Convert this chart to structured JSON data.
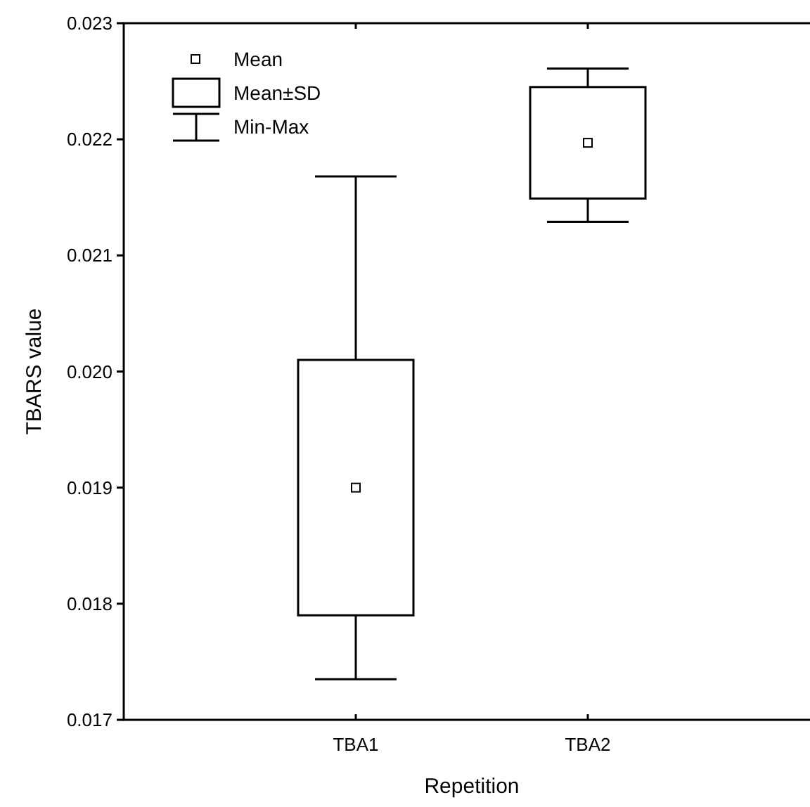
{
  "chart_data": {
    "type": "box",
    "xlabel": "Repetition",
    "ylabel": "TBARS value",
    "categories": [
      "TBA1",
      "TBA2"
    ],
    "boxes": [
      {
        "low": 0.01735,
        "q1": 0.0179,
        "q3": 0.0201,
        "high": 0.02168,
        "mean": 0.019
      },
      {
        "low": 0.02129,
        "q1": 0.02149,
        "q3": 0.02245,
        "high": 0.02261,
        "mean": 0.02197
      }
    ],
    "ylim": [
      0.017,
      0.023
    ],
    "yticks": [
      0.017,
      0.018,
      0.019,
      {
        "value": 0.02,
        "label": "0.020"
      },
      0.021,
      0.022,
      0.023
    ],
    "annotations": [
      "Mean",
      "Mean±SD",
      "Min-Max"
    ]
  }
}
